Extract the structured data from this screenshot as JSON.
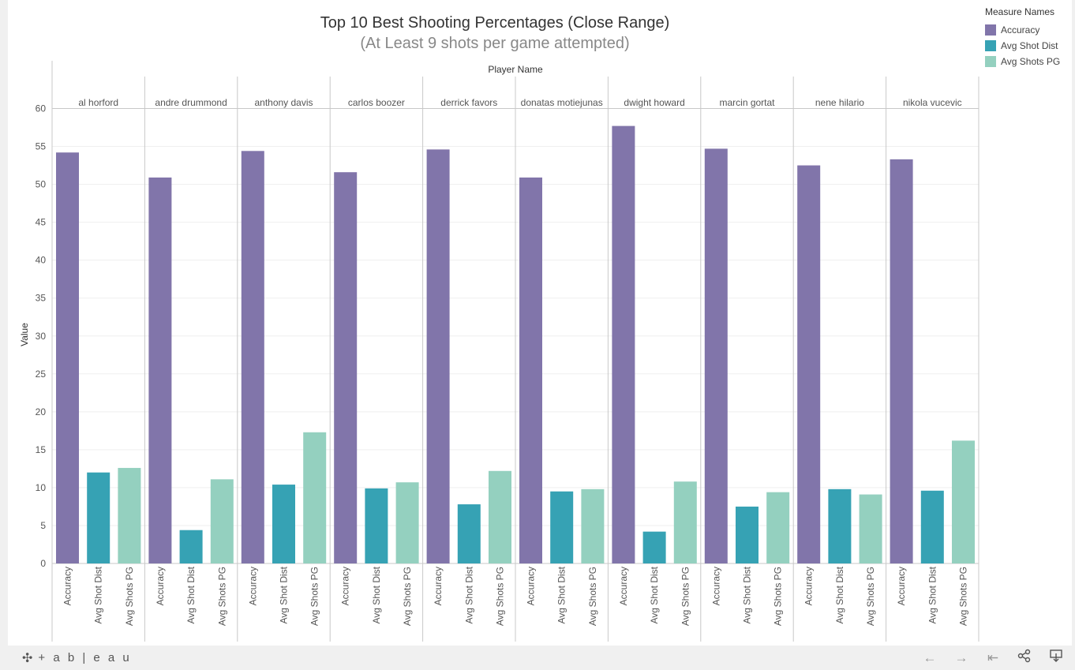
{
  "title": "Top 10 Best Shooting Percentages (Close Range)",
  "subtitle": "(At Least 9 shots per game attempted)",
  "legend": {
    "title": "Measure Names",
    "items": [
      {
        "label": "Accuracy",
        "color": "#8175aa"
      },
      {
        "label": "Avg Shot Dist",
        "color": "#36a2b4"
      },
      {
        "label": "Avg Shots PG",
        "color": "#94d0bf"
      }
    ]
  },
  "footer": {
    "logo_text": "+ a b | e a u",
    "icons": [
      "undo-arrow-icon",
      "redo-arrow-icon",
      "revert-icon",
      "share-icon",
      "download-icon"
    ]
  },
  "chart_data": {
    "type": "bar",
    "title": "Top 10 Best Shooting Percentages (Close Range)",
    "subtitle": "(At Least 9 shots per game attempted)",
    "column_header": "Player Name",
    "ylabel": "Value",
    "ylim": [
      0,
      60
    ],
    "yticks": [
      0,
      5,
      10,
      15,
      20,
      25,
      30,
      35,
      40,
      45,
      50,
      55,
      60
    ],
    "grid": true,
    "legend_placement": "top-right",
    "measures": [
      "Accuracy",
      "Avg Shot Dist",
      "Avg Shots PG"
    ],
    "colors": [
      "#8175aa",
      "#36a2b4",
      "#94d0bf"
    ],
    "categories": [
      "al horford",
      "andre drummond",
      "anthony davis",
      "carlos boozer",
      "derrick favors",
      "donatas motiejunas",
      "dwight howard",
      "marcin gortat",
      "nene hilario",
      "nikola vucevic"
    ],
    "series": [
      {
        "name": "Accuracy",
        "values": [
          54.2,
          50.9,
          54.4,
          51.6,
          54.6,
          50.9,
          57.7,
          54.7,
          52.5,
          53.3
        ]
      },
      {
        "name": "Avg Shot Dist",
        "values": [
          12.0,
          4.4,
          10.4,
          9.9,
          7.8,
          9.5,
          4.2,
          7.5,
          9.8,
          9.6
        ]
      },
      {
        "name": "Avg Shots PG",
        "values": [
          12.6,
          11.1,
          17.3,
          10.7,
          12.2,
          9.8,
          10.8,
          9.4,
          9.1,
          16.2
        ]
      }
    ]
  }
}
